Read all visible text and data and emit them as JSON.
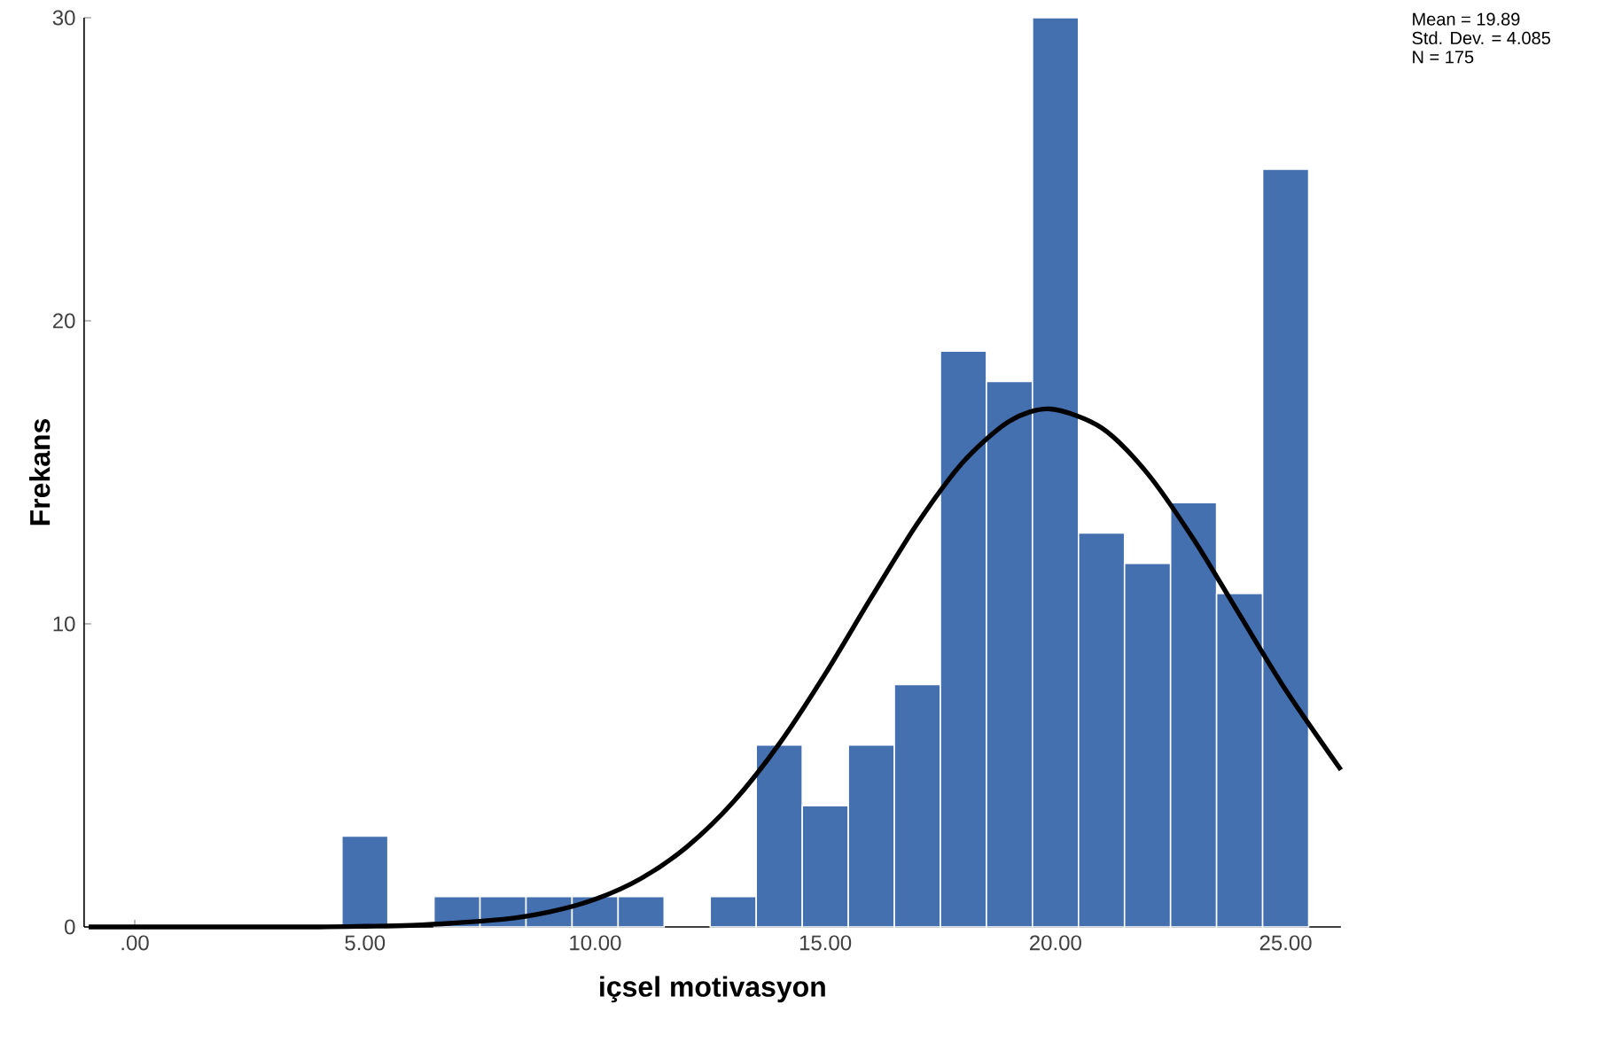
{
  "chart_data": {
    "type": "histogram",
    "xlabel": "içsel motivasyon",
    "ylabel": "Frekans",
    "bins": [
      4.5,
      5.5,
      6.5,
      7.5,
      8.5,
      9.5,
      10.5,
      11.5,
      12.5,
      13.5,
      14.5,
      15.5,
      16.5,
      17.5,
      18.5,
      19.5,
      20.5,
      21.5,
      22.5,
      23.5,
      24.5,
      25.5
    ],
    "values": [
      3,
      0,
      1,
      1,
      1,
      1,
      1,
      0,
      1,
      6,
      4,
      6,
      8,
      19,
      18,
      30,
      13,
      12,
      14,
      11,
      25
    ],
    "color": "#4470b0",
    "series": [
      {
        "type": "line",
        "color": "#000000",
        "x": [
          -1,
          0,
          2,
          4,
          5,
          6,
          8,
          9,
          10,
          11,
          12,
          13,
          14,
          15,
          16,
          17,
          18,
          19,
          19.89,
          21,
          22,
          23,
          24,
          25,
          26.2
        ],
        "values": [
          0,
          0,
          0,
          0,
          0.02,
          0.05,
          0.25,
          0.49,
          0.91,
          1.6,
          2.65,
          4.12,
          6.04,
          8.35,
          10.87,
          13.31,
          15.35,
          16.69,
          17.09,
          16.47,
          14.96,
          12.79,
          10.3,
          7.82,
          5.18
        ]
      }
    ],
    "xlim": [
      -1.1,
      26.2
    ],
    "ylim": [
      0,
      30
    ],
    "xticks": [
      {
        "value": 0,
        "label": ".00"
      },
      {
        "value": 5,
        "label": "5.00"
      },
      {
        "value": 10,
        "label": "10.00"
      },
      {
        "value": 15,
        "label": "15.00"
      },
      {
        "value": 20,
        "label": "20.00"
      },
      {
        "value": 25,
        "label": "25.00"
      }
    ],
    "yticks": [
      0,
      10,
      20,
      30
    ],
    "annotations": [
      "Mean = 19.89",
      "Std. Dev. = 4.085",
      "N = 175"
    ],
    "grid": false,
    "marker": "none",
    "line_style": "solid"
  }
}
